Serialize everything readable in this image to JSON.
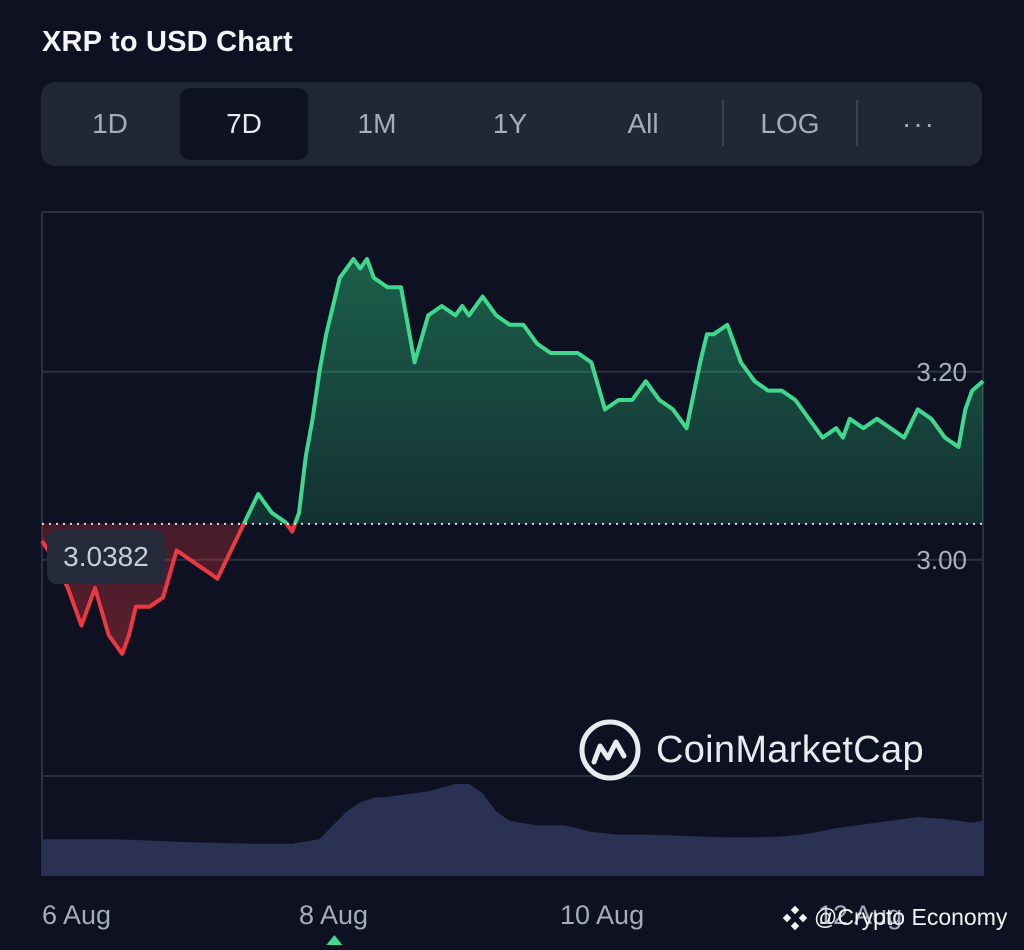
{
  "header": {
    "title": "XRP to USD Chart"
  },
  "range_tabs": [
    {
      "label": "1D",
      "active": false
    },
    {
      "label": "7D",
      "active": true
    },
    {
      "label": "1M",
      "active": false
    },
    {
      "label": "1Y",
      "active": false
    },
    {
      "label": "All",
      "active": false
    }
  ],
  "scale_toggle": {
    "label": "LOG"
  },
  "more_menu": {
    "label": "···"
  },
  "reference_price": {
    "label": "3.0382"
  },
  "brand": {
    "logo_text": "CoinMarketCap"
  },
  "watermark": {
    "text": "@Crypto Economy"
  },
  "colors": {
    "up": "#3fd88e",
    "down": "#ea3943",
    "volume": "#2b3152",
    "background": "#0d1121"
  },
  "chart_data": {
    "type": "area",
    "title": "XRP to USD Chart",
    "x_ticks": [
      "6 Aug",
      "8 Aug",
      "10 Aug",
      "12 Aug"
    ],
    "y_ticks": [
      3.2,
      3.0
    ],
    "y_tick_labels": [
      "3.20",
      "3.00"
    ],
    "ylim": [
      2.77,
      3.37
    ],
    "xlim": [
      5.96,
      12.88
    ],
    "reference_line": 3.0382,
    "grid": true,
    "series": [
      {
        "x": [
          5.96,
          6.05,
          6.15,
          6.25,
          6.35,
          6.45,
          6.55,
          6.6,
          6.65,
          6.75,
          6.85,
          6.95,
          7.05,
          7.15,
          7.25,
          7.35,
          7.45,
          7.55,
          7.65,
          7.75,
          7.8,
          7.85,
          7.9,
          7.95,
          8.0,
          8.05,
          8.1,
          8.15,
          8.2,
          8.25,
          8.3,
          8.35,
          8.4,
          8.5,
          8.6,
          8.7,
          8.8,
          8.9,
          9.0,
          9.05,
          9.1,
          9.2,
          9.3,
          9.4,
          9.5,
          9.6,
          9.7,
          9.8,
          9.9,
          10.0,
          10.1,
          10.2,
          10.3,
          10.4,
          10.5,
          10.6,
          10.7,
          10.8,
          10.85,
          10.9,
          11.0,
          11.1,
          11.2,
          11.3,
          11.4,
          11.5,
          11.6,
          11.7,
          11.8,
          11.85,
          11.9,
          12.0,
          12.1,
          12.2,
          12.3,
          12.4,
          12.5,
          12.6,
          12.7,
          12.75,
          12.8,
          12.88
        ],
        "y": [
          3.02,
          3.0,
          2.97,
          2.93,
          2.97,
          2.92,
          2.9,
          2.92,
          2.95,
          2.95,
          2.96,
          3.01,
          3.0,
          2.99,
          2.98,
          3.01,
          3.04,
          3.07,
          3.05,
          3.04,
          3.03,
          3.05,
          3.11,
          3.15,
          3.2,
          3.24,
          3.27,
          3.3,
          3.31,
          3.32,
          3.31,
          3.32,
          3.3,
          3.29,
          3.29,
          3.21,
          3.26,
          3.27,
          3.26,
          3.27,
          3.26,
          3.28,
          3.26,
          3.25,
          3.25,
          3.23,
          3.22,
          3.22,
          3.22,
          3.21,
          3.16,
          3.17,
          3.17,
          3.19,
          3.17,
          3.16,
          3.14,
          3.21,
          3.24,
          3.24,
          3.25,
          3.21,
          3.19,
          3.18,
          3.18,
          3.17,
          3.15,
          3.13,
          3.14,
          3.13,
          3.15,
          3.14,
          3.15,
          3.14,
          3.13,
          3.16,
          3.15,
          3.13,
          3.12,
          3.16,
          3.18,
          3.19
        ]
      }
    ],
    "volume": {
      "x": [
        5.96,
        6.5,
        7.0,
        7.5,
        7.8,
        8.0,
        8.1,
        8.2,
        8.3,
        8.4,
        8.5,
        8.6,
        8.8,
        9.0,
        9.1,
        9.2,
        9.3,
        9.4,
        9.6,
        9.8,
        10.0,
        10.2,
        10.4,
        10.6,
        10.8,
        11.0,
        11.2,
        11.4,
        11.6,
        11.8,
        12.0,
        12.2,
        12.4,
        12.6,
        12.8,
        12.88
      ],
      "y": [
        0.4,
        0.4,
        0.37,
        0.35,
        0.35,
        0.4,
        0.55,
        0.7,
        0.8,
        0.85,
        0.86,
        0.88,
        0.92,
        1.0,
        1.0,
        0.9,
        0.7,
        0.6,
        0.55,
        0.55,
        0.48,
        0.45,
        0.45,
        0.44,
        0.43,
        0.42,
        0.42,
        0.43,
        0.46,
        0.52,
        0.56,
        0.6,
        0.64,
        0.62,
        0.58,
        0.6
      ]
    }
  }
}
